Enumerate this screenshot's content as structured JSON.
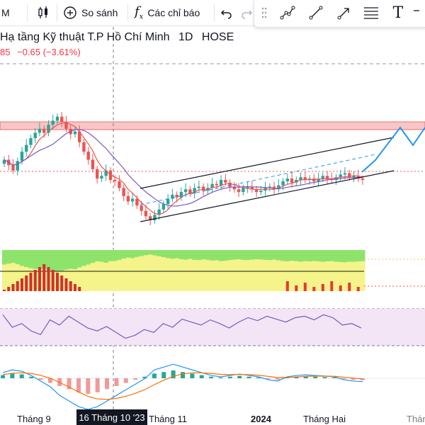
{
  "toolbar": {
    "interval_label": "M",
    "compare_label": "So sánh",
    "indicators_label": "Các chỉ báo",
    "fx_symbol": "f",
    "fx_sub": "x"
  },
  "drawing_tools": {
    "text_tool_glyph": "T"
  },
  "symbol": {
    "name": "Hạ tầng Kỹ thuật T.P Hồ Chí Minh",
    "interval": "1D",
    "exchange": "HOSE",
    "price_fragment": "85",
    "change": "−0.65",
    "change_pct": "(−3.61%)"
  },
  "time_axis": {
    "labels": [
      "Tháng 9",
      "Tháng 11",
      "2024",
      "Tháng Hai",
      "Tháng"
    ],
    "crosshair_date": "16 Tháng 10 '23"
  },
  "colors": {
    "up": "#26a69a",
    "down": "#ef5350",
    "ma_fast": "#ef5350",
    "ma_slow": "#7e57c2",
    "channel": "#131722",
    "projection": "#2196f3",
    "resistance_zone": "#f7c6c6",
    "rsi_bg": "#f3e5f5",
    "rsi_line": "#7e57c2",
    "macd_line": "#2196f3",
    "signal_line": "#ff6d00"
  },
  "chart_data": {
    "type": "candlestick",
    "price_closes": [
      21.0,
      20.6,
      20.2,
      20.9,
      21.6,
      22.1,
      22.6,
      23.0,
      23.3,
      23.0,
      23.6,
      23.9,
      24.2,
      23.8,
      23.3,
      22.9,
      23.1,
      22.3,
      21.6,
      21.0,
      20.3,
      19.6,
      19.8,
      20.2,
      19.5,
      19.4,
      18.9,
      18.3,
      17.9,
      18.1,
      17.6,
      17.2,
      16.8,
      16.5,
      16.9,
      17.3,
      17.7,
      18.1,
      18.4,
      18.2,
      18.6,
      18.8,
      18.5,
      18.9,
      19.0,
      18.7,
      18.9,
      19.2,
      19.1,
      19.5,
      19.3,
      19.0,
      18.8,
      18.6,
      18.9,
      19.0,
      18.8,
      18.6,
      18.7,
      18.9,
      19.0,
      18.8,
      19.1,
      19.4,
      19.6,
      19.3,
      19.5,
      19.7,
      19.5,
      19.6,
      19.4,
      19.6,
      19.8,
      19.6,
      19.5,
      19.7,
      19.9,
      20.0,
      19.7,
      19.8,
      19.6,
      19.5
    ],
    "rsi": [
      62,
      45,
      50,
      40,
      35,
      55,
      48,
      60,
      52,
      44,
      40,
      46,
      38,
      30,
      34,
      42,
      38,
      50,
      45,
      56,
      52,
      48,
      55,
      50,
      44,
      52,
      58,
      54,
      60,
      56,
      52,
      58,
      60,
      55,
      62,
      58,
      48,
      50,
      44
    ],
    "macd_histogram": [
      0.2,
      0.3,
      0.25,
      0.1,
      -0.1,
      -0.3,
      -0.5,
      -0.7,
      -0.9,
      -1.0,
      -0.9,
      -0.7,
      -0.5,
      -0.3,
      -0.1,
      0.1,
      0.3,
      0.4,
      0.5,
      0.4,
      0.3,
      0.2,
      0.1,
      0.05,
      0.1,
      0.15,
      0.1,
      0.05,
      -0.05,
      -0.1,
      0.05,
      0.1,
      0.12,
      0.1,
      0.08,
      0.05,
      -0.05,
      -0.1,
      -0.12
    ]
  }
}
